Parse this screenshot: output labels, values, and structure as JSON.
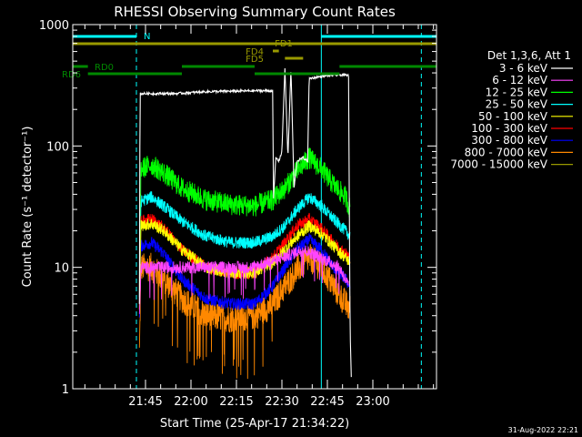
{
  "chart_data": {
    "type": "line",
    "title": "RHESSI Observing Summary Count Rates",
    "xlabel": "Start Time (25-Apr-17 21:34:22)",
    "ylabel": "Count Rate (s⁻¹ detector⁻¹)",
    "y_scale": "log",
    "ylim": [
      1,
      1000
    ],
    "xlim_minutes": [
      -24,
      96
    ],
    "y_ticks": [
      {
        "v": 1,
        "label": "1"
      },
      {
        "v": 10,
        "label": "10"
      },
      {
        "v": 100,
        "label": "100"
      },
      {
        "v": 1000,
        "label": "1000"
      }
    ],
    "x_ticks": [
      {
        "t": 0,
        "label": "21:45"
      },
      {
        "t": 15,
        "label": "22:00"
      },
      {
        "t": 30,
        "label": "22:15"
      },
      {
        "t": 45,
        "label": "22:30"
      },
      {
        "t": 60,
        "label": "22:45"
      },
      {
        "t": 75,
        "label": "23:00"
      }
    ],
    "legend_header": "Det 1,3,6, Att 1",
    "footer_date": "31-Aug-2022 22:21",
    "series": [
      {
        "name": "3 - 6 keV",
        "color": "#ffffff",
        "pts": [
          [
            -2,
            5
          ],
          [
            -1.8,
            270
          ],
          [
            10,
            270
          ],
          [
            20,
            280
          ],
          [
            36,
            285
          ],
          [
            42,
            285
          ],
          [
            42.2,
            35
          ],
          [
            43,
            80
          ],
          [
            44,
            75
          ],
          [
            45,
            90
          ],
          [
            46,
            440
          ],
          [
            47,
            80
          ],
          [
            48,
            440
          ],
          [
            49,
            45
          ],
          [
            50,
            75
          ],
          [
            52,
            80
          ],
          [
            53.5,
            75
          ],
          [
            54,
            360
          ],
          [
            60,
            380
          ],
          [
            65,
            385
          ],
          [
            67,
            380
          ],
          [
            67.5,
            3
          ],
          [
            68,
            1
          ]
        ]
      },
      {
        "name": "6 - 12 keV",
        "color": "#ff44ff",
        "pts": [
          [
            -2,
            4
          ],
          [
            -1.5,
            10
          ],
          [
            10,
            10
          ],
          [
            20,
            10
          ],
          [
            35,
            10
          ],
          [
            45,
            12
          ],
          [
            52,
            14
          ],
          [
            58,
            12
          ],
          [
            64,
            10
          ],
          [
            67,
            7
          ]
        ]
      },
      {
        "name": "12 - 25 keV",
        "color": "#00ff00",
        "pts": [
          [
            -2,
            10
          ],
          [
            -1.5,
            65
          ],
          [
            2,
            70
          ],
          [
            6,
            60
          ],
          [
            12,
            45
          ],
          [
            20,
            36
          ],
          [
            28,
            33
          ],
          [
            36,
            32
          ],
          [
            42,
            36
          ],
          [
            46,
            45
          ],
          [
            50,
            62
          ],
          [
            54,
            80
          ],
          [
            58,
            65
          ],
          [
            62,
            48
          ],
          [
            66,
            38
          ],
          [
            67.5,
            30
          ]
        ]
      },
      {
        "name": "25 - 50 keV",
        "color": "#00ffff",
        "pts": [
          [
            -2,
            6
          ],
          [
            -1.5,
            35
          ],
          [
            2,
            38
          ],
          [
            6,
            32
          ],
          [
            12,
            24
          ],
          [
            20,
            18
          ],
          [
            28,
            16
          ],
          [
            36,
            16
          ],
          [
            42,
            18
          ],
          [
            46,
            22
          ],
          [
            50,
            30
          ],
          [
            54,
            38
          ],
          [
            58,
            32
          ],
          [
            62,
            25
          ],
          [
            66,
            20
          ],
          [
            67.5,
            18
          ]
        ]
      },
      {
        "name": "50 - 100 keV",
        "color": "#ffff00",
        "pts": [
          [
            -2,
            5
          ],
          [
            -1.5,
            22
          ],
          [
            2,
            23
          ],
          [
            6,
            20
          ],
          [
            12,
            14
          ],
          [
            20,
            10
          ],
          [
            28,
            9
          ],
          [
            36,
            9
          ],
          [
            42,
            11
          ],
          [
            46,
            14
          ],
          [
            50,
            18
          ],
          [
            54,
            22
          ],
          [
            58,
            19
          ],
          [
            62,
            15
          ],
          [
            66,
            12
          ],
          [
            67.5,
            11
          ]
        ]
      },
      {
        "name": "100 - 300 keV",
        "color": "#ff0000",
        "pts": [
          [
            -2,
            5
          ],
          [
            -1.5,
            24
          ],
          [
            2,
            25
          ],
          [
            6,
            21
          ],
          [
            12,
            14
          ],
          [
            20,
            10
          ],
          [
            28,
            9
          ],
          [
            36,
            9
          ],
          [
            42,
            12
          ],
          [
            46,
            16
          ],
          [
            50,
            22
          ],
          [
            54,
            25
          ],
          [
            58,
            21
          ],
          [
            62,
            16
          ],
          [
            66,
            13
          ],
          [
            67.5,
            12
          ]
        ]
      },
      {
        "name": "300 - 800 keV",
        "color": "#0000ff",
        "pts": [
          [
            -2,
            4
          ],
          [
            -1.5,
            15
          ],
          [
            2,
            16
          ],
          [
            6,
            13
          ],
          [
            12,
            8
          ],
          [
            20,
            5.5
          ],
          [
            28,
            5
          ],
          [
            36,
            5
          ],
          [
            42,
            7
          ],
          [
            46,
            10
          ],
          [
            50,
            14
          ],
          [
            54,
            17
          ],
          [
            58,
            14
          ],
          [
            62,
            10
          ],
          [
            66,
            8
          ],
          [
            67.5,
            7
          ]
        ]
      },
      {
        "name": "800 - 7000 keV",
        "color": "#ff8800",
        "pts": [
          [
            -2,
            2
          ],
          [
            -1.5,
            10
          ],
          [
            2,
            10
          ],
          [
            6,
            8
          ],
          [
            12,
            5.5
          ],
          [
            20,
            4
          ],
          [
            28,
            3.8
          ],
          [
            36,
            4
          ],
          [
            42,
            5
          ],
          [
            46,
            7
          ],
          [
            50,
            9.5
          ],
          [
            54,
            12
          ],
          [
            58,
            10
          ],
          [
            62,
            7
          ],
          [
            66,
            5
          ],
          [
            67.5,
            4.5
          ]
        ]
      },
      {
        "name": "7000 - 15000 keV",
        "color": "#999900",
        "pts": []
      }
    ],
    "flag_bars": [
      {
        "label": "N",
        "color": "#00ffff",
        "y": 40,
        "segments": [
          [
            -24,
            -3
          ],
          [
            58,
            96
          ]
        ]
      },
      {
        "label": "FD1",
        "color": "#999900",
        "y": 48,
        "segments": [
          [
            -24,
            96
          ]
        ]
      },
      {
        "label": "FD4",
        "color": "#999900",
        "y": 56,
        "segments": [
          [
            42,
            44
          ]
        ]
      },
      {
        "label": "FD5",
        "color": "#999900",
        "y": 64,
        "segments": [
          [
            46,
            52
          ]
        ]
      },
      {
        "label": "RD0",
        "color": "#008800",
        "y": 73,
        "segments": [
          [
            -24,
            -19
          ],
          [
            12,
            36
          ],
          [
            64,
            96
          ]
        ]
      },
      {
        "label": "RD6",
        "color": "#008800",
        "y": 81,
        "segments": [
          [
            -19,
            12
          ],
          [
            36,
            64
          ]
        ]
      }
    ],
    "vlines": [
      {
        "t": -24,
        "color": "#00ffff",
        "style": "solid"
      },
      {
        "t": -3,
        "color": "#00ffff",
        "style": "dashed"
      },
      {
        "t": 58,
        "color": "#00ffff",
        "style": "solid"
      },
      {
        "t": 91,
        "color": "#00ffff",
        "style": "dashed"
      }
    ]
  }
}
